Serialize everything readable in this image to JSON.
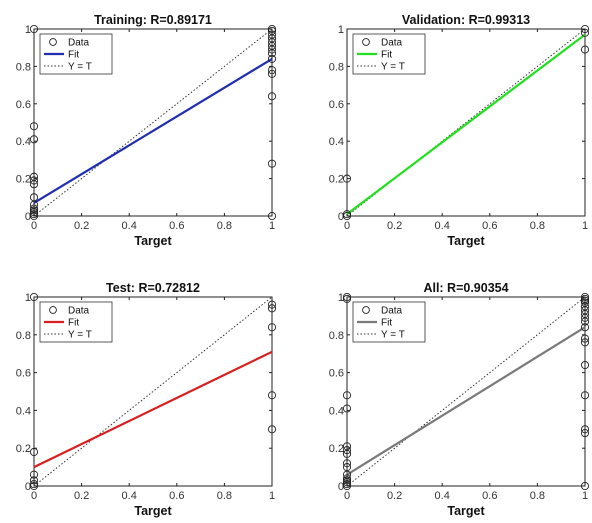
{
  "chart_data": [
    {
      "type": "scatter",
      "title": "Training: R=0.89171",
      "xlabel": "Target",
      "ylabel": "",
      "xlim": [
        0,
        1
      ],
      "ylim": [
        0,
        1
      ],
      "xticks": [
        "0",
        "0.2",
        "0.4",
        "0.6",
        "0.8",
        "1"
      ],
      "yticks": [
        "0",
        "0.2",
        "0.4",
        "0.6",
        "0.8",
        "1"
      ],
      "fit_color": "#1f2fb0",
      "fit": [
        [
          0,
          0.07
        ],
        [
          1,
          0.84
        ]
      ],
      "identity": [
        [
          0,
          0
        ],
        [
          1,
          1
        ]
      ],
      "legend": [
        "Data",
        "Fit",
        "Y = T"
      ],
      "legend_position": "top-left",
      "points": [
        [
          0,
          1.0
        ],
        [
          0,
          0.48
        ],
        [
          0,
          0.41
        ],
        [
          0,
          0.21
        ],
        [
          0,
          0.19
        ],
        [
          0,
          0.17
        ],
        [
          0,
          0.1
        ],
        [
          0,
          0.06
        ],
        [
          0,
          0.04
        ],
        [
          0,
          0.03
        ],
        [
          0,
          0.02
        ],
        [
          0,
          0.01
        ],
        [
          0,
          0.0
        ],
        [
          1,
          1.0
        ],
        [
          1,
          0.99
        ],
        [
          1,
          0.97
        ],
        [
          1,
          0.95
        ],
        [
          1,
          0.93
        ],
        [
          1,
          0.91
        ],
        [
          1,
          0.89
        ],
        [
          1,
          0.87
        ],
        [
          1,
          0.84
        ],
        [
          1,
          0.78
        ],
        [
          1,
          0.76
        ],
        [
          1,
          0.64
        ],
        [
          1,
          0.28
        ],
        [
          1,
          0.0
        ]
      ]
    },
    {
      "type": "scatter",
      "title": "Validation: R=0.99313",
      "xlabel": "Target",
      "ylabel": "",
      "xlim": [
        0,
        1
      ],
      "ylim": [
        0,
        1
      ],
      "xticks": [
        "0",
        "0.2",
        "0.4",
        "0.6",
        "0.8",
        "1"
      ],
      "yticks": [
        "0",
        "0.2",
        "0.4",
        "0.6",
        "0.8",
        "1"
      ],
      "fit_color": "#22e01f",
      "fit": [
        [
          0,
          0.01
        ],
        [
          1,
          0.97
        ]
      ],
      "identity": [
        [
          0,
          0
        ],
        [
          1,
          1
        ]
      ],
      "legend": [
        "Data",
        "Fit",
        "Y = T"
      ],
      "legend_position": "top-left",
      "points": [
        [
          0,
          0.2
        ],
        [
          0,
          0.01
        ],
        [
          0,
          0.0
        ],
        [
          1,
          1.0
        ],
        [
          1,
          0.98
        ],
        [
          1,
          0.89
        ]
      ]
    },
    {
      "type": "scatter",
      "title": "Test: R=0.72812",
      "xlabel": "Target",
      "ylabel": "",
      "xlim": [
        0,
        1
      ],
      "ylim": [
        0,
        1
      ],
      "xticks": [
        "0",
        "0.2",
        "0.4",
        "0.6",
        "0.8",
        "1"
      ],
      "yticks": [
        "0",
        "0.2",
        "0.4",
        "0.6",
        "0.8",
        "1"
      ],
      "fit_color": "#d81f1f",
      "fit": [
        [
          0,
          0.1
        ],
        [
          1,
          0.71
        ]
      ],
      "identity": [
        [
          0,
          0
        ],
        [
          1,
          1
        ]
      ],
      "legend": [
        "Data",
        "Fit",
        "Y = T"
      ],
      "legend_position": "top-left",
      "points": [
        [
          0,
          1.0
        ],
        [
          0,
          0.18
        ],
        [
          0,
          0.06
        ],
        [
          0,
          0.03
        ],
        [
          0,
          0.01
        ],
        [
          0,
          0.0
        ],
        [
          1,
          0.96
        ],
        [
          1,
          0.94
        ],
        [
          1,
          0.84
        ],
        [
          1,
          0.48
        ],
        [
          1,
          0.3
        ]
      ]
    },
    {
      "type": "scatter",
      "title": "All: R=0.90354",
      "xlabel": "Target",
      "ylabel": "",
      "xlim": [
        0,
        1
      ],
      "ylim": [
        0,
        1
      ],
      "xticks": [
        "0",
        "0.2",
        "0.4",
        "0.6",
        "0.8",
        "1"
      ],
      "yticks": [
        "0",
        "0.2",
        "0.4",
        "0.6",
        "0.8",
        "1"
      ],
      "fit_color": "#7a7a7a",
      "fit": [
        [
          0,
          0.06
        ],
        [
          1,
          0.84
        ]
      ],
      "identity": [
        [
          0,
          0
        ],
        [
          1,
          1
        ]
      ],
      "legend": [
        "Data",
        "Fit",
        "Y = T"
      ],
      "legend_position": "top-left",
      "points": [
        [
          0,
          1.0
        ],
        [
          0,
          0.99
        ],
        [
          0,
          0.48
        ],
        [
          0,
          0.41
        ],
        [
          0,
          0.21
        ],
        [
          0,
          0.19
        ],
        [
          0,
          0.17
        ],
        [
          0,
          0.12
        ],
        [
          0,
          0.1
        ],
        [
          0,
          0.06
        ],
        [
          0,
          0.04
        ],
        [
          0,
          0.03
        ],
        [
          0,
          0.02
        ],
        [
          0,
          0.01
        ],
        [
          0,
          0.0
        ],
        [
          1,
          1.0
        ],
        [
          1,
          0.99
        ],
        [
          1,
          0.98
        ],
        [
          1,
          0.97
        ],
        [
          1,
          0.95
        ],
        [
          1,
          0.93
        ],
        [
          1,
          0.91
        ],
        [
          1,
          0.89
        ],
        [
          1,
          0.87
        ],
        [
          1,
          0.84
        ],
        [
          1,
          0.78
        ],
        [
          1,
          0.76
        ],
        [
          1,
          0.64
        ],
        [
          1,
          0.48
        ],
        [
          1,
          0.3
        ],
        [
          1,
          0.28
        ],
        [
          1,
          0.0
        ]
      ]
    }
  ]
}
